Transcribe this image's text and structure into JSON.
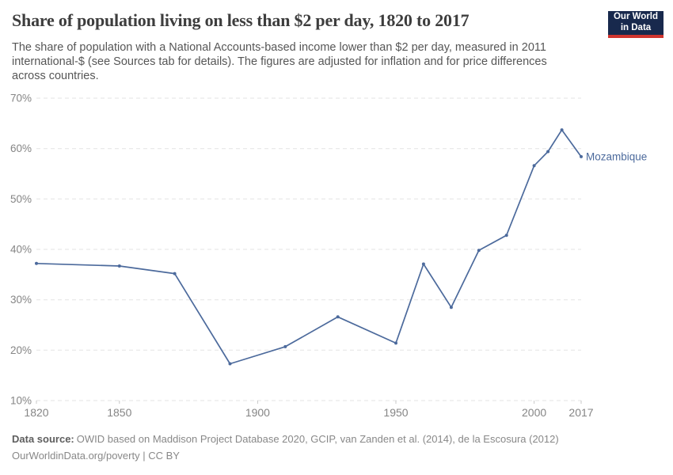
{
  "header": {
    "logo": {
      "line1": "Our World",
      "line2": "in Data",
      "bg_color": "#18294d",
      "bar_color": "#d0352f"
    }
  },
  "chart_data": {
    "type": "line",
    "title": "Share of population living on less than $2 per day, 1820 to 2017",
    "subtitle": "The share of population with a National Accounts-based income lower than $2 per day, measured in 2011 international-$ (see Sources tab for details). The figures are adjusted for inflation and for price differences across countries.",
    "xlabel": "",
    "ylabel": "",
    "xlim": [
      1820,
      2017
    ],
    "ylim": [
      10,
      70
    ],
    "grid": true,
    "legend_position": "end-of-line-label",
    "x_ticks": [
      1820,
      1850,
      1900,
      1950,
      2000,
      2017
    ],
    "x_tick_labels": [
      "1820",
      "1850",
      "1900",
      "1950",
      "2000",
      "2017"
    ],
    "y_ticks": [
      10,
      20,
      30,
      40,
      50,
      60,
      70
    ],
    "y_tick_labels": [
      "10%",
      "20%",
      "30%",
      "40%",
      "50%",
      "60%",
      "70%"
    ],
    "series": [
      {
        "name": "Mozambique",
        "x": [
          1820,
          1850,
          1870,
          1890,
          1910,
          1929,
          1950,
          1960,
          1970,
          1980,
          1990,
          2000,
          2005,
          2010,
          2017
        ],
        "values": [
          37.2,
          36.7,
          35.2,
          17.3,
          20.7,
          26.6,
          21.4,
          37.1,
          28.5,
          39.8,
          42.8,
          56.6,
          59.4,
          63.7,
          58.4
        ]
      }
    ],
    "colors": {
      "line": "#4c6a9c",
      "grid": "#e3e3e3",
      "tick": "#c8c8c8",
      "axis_text": "#858585"
    }
  },
  "footer": {
    "source_label": "Data source:",
    "source_text": "OWID based on Maddison Project Database 2020, GCIP, van Zanden et al. (2014), de la Escosura (2012)",
    "link_line": "OurWorldinData.org/poverty | CC BY"
  }
}
